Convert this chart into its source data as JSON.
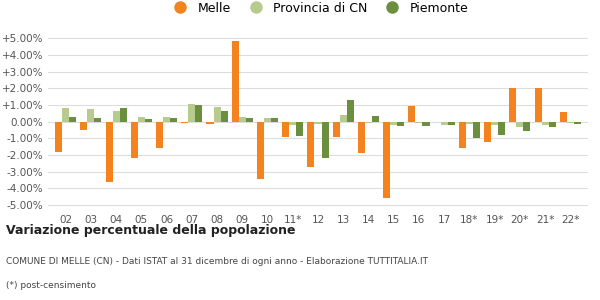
{
  "categories": [
    "02",
    "03",
    "04",
    "05",
    "06",
    "07",
    "08",
    "09",
    "10",
    "11*",
    "12",
    "13",
    "14",
    "15",
    "16",
    "17",
    "18*",
    "19*",
    "20*",
    "21*",
    "22*"
  ],
  "melle": [
    -1.8,
    -0.5,
    -3.6,
    -2.2,
    -1.55,
    -0.1,
    -0.15,
    4.85,
    -3.45,
    -0.9,
    -2.7,
    -0.9,
    -1.9,
    -4.55,
    0.95,
    0.0,
    -1.55,
    -1.2,
    2.05,
    2.05,
    0.6
  ],
  "provincia_cn": [
    0.85,
    0.75,
    0.65,
    0.3,
    0.3,
    1.05,
    0.9,
    0.3,
    0.25,
    -0.2,
    -0.15,
    0.4,
    -0.1,
    -0.2,
    -0.1,
    -0.2,
    -0.15,
    -0.2,
    -0.3,
    -0.2,
    -0.1
  ],
  "piemonte": [
    0.3,
    0.2,
    0.8,
    0.15,
    0.25,
    1.0,
    0.65,
    0.25,
    0.2,
    -0.85,
    -2.15,
    1.3,
    0.35,
    -0.25,
    -0.25,
    -0.2,
    -0.95,
    -0.8,
    -0.55,
    -0.3,
    -0.15
  ],
  "melle_color": "#f4821e",
  "provincia_cn_color": "#b5cc8e",
  "piemonte_color": "#6b8f3e",
  "bg_color": "#ffffff",
  "grid_color": "#dddddd",
  "yticks": [
    -5.0,
    -4.0,
    -3.0,
    -2.0,
    -1.0,
    0.0,
    1.0,
    2.0,
    3.0,
    4.0,
    5.0
  ],
  "ytick_labels": [
    "-5.00%",
    "-4.00%",
    "-3.00%",
    "-2.00%",
    "-1.00%",
    "0.00%",
    "+1.00%",
    "+2.00%",
    "+3.00%",
    "+4.00%",
    "+5.00%"
  ],
  "ylim": [
    -5.3,
    5.5
  ],
  "title": "Variazione percentuale della popolazione",
  "subtitle": "COMUNE DI MELLE (CN) - Dati ISTAT al 31 dicembre di ogni anno - Elaborazione TUTTITALIA.IT",
  "footnote": "(*) post-censimento",
  "legend_labels": [
    "Melle",
    "Provincia di CN",
    "Piemonte"
  ]
}
